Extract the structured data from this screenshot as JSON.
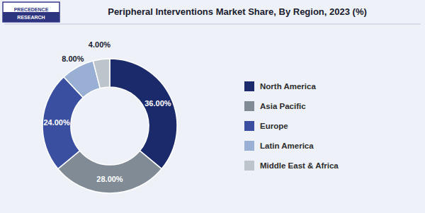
{
  "chart_data": {
    "type": "donut",
    "title": "Peripheral Interventions Market Share, By Region, 2023 (%)",
    "categories": [
      "North America",
      "Asia Pacific",
      "Europe",
      "Latin America",
      "Middle East & Africa"
    ],
    "values": [
      36.0,
      28.0,
      24.0,
      8.0,
      4.0
    ],
    "value_labels": [
      "36.00%",
      "28.00%",
      "24.00%",
      "8.00%",
      "4.00%"
    ],
    "colors": [
      "#1b2a6b",
      "#808b96",
      "#3b4fa0",
      "#9aafd4",
      "#bcc4cc"
    ],
    "data_labels": true,
    "legend": "right",
    "annotations": [
      "PRECEDENCE",
      "RESEARCH"
    ]
  }
}
